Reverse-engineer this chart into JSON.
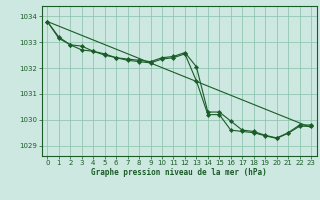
{
  "title": "Graphe pression niveau de la mer (hPa)",
  "background_color": "#cce8e0",
  "grid_color": "#88c0a8",
  "line_color": "#1a5c28",
  "ylim": [
    1028.6,
    1034.4
  ],
  "xlim": [
    -0.5,
    23.5
  ],
  "yticks": [
    1029,
    1030,
    1031,
    1032,
    1033,
    1034
  ],
  "xticks": [
    0,
    1,
    2,
    3,
    4,
    5,
    6,
    7,
    8,
    9,
    10,
    11,
    12,
    13,
    14,
    15,
    16,
    17,
    18,
    19,
    20,
    21,
    22,
    23
  ],
  "line_straight": {
    "x": [
      0,
      23
    ],
    "y": [
      1033.8,
      1029.7
    ]
  },
  "line_main": {
    "x": [
      0,
      1,
      2,
      3,
      4,
      5,
      6,
      7,
      8,
      9,
      10,
      11,
      12,
      13,
      14,
      15,
      16,
      17,
      18,
      19,
      20,
      21,
      22,
      23
    ],
    "y": [
      1033.8,
      1033.2,
      1032.9,
      1032.85,
      1032.65,
      1032.55,
      1032.4,
      1032.35,
      1032.3,
      1032.25,
      1032.4,
      1032.45,
      1032.6,
      1032.05,
      1030.3,
      1030.3,
      1029.95,
      1029.6,
      1029.55,
      1029.4,
      1029.3,
      1029.5,
      1029.8,
      1029.8
    ]
  },
  "line_mid": {
    "x": [
      0,
      1,
      2,
      3,
      4,
      5,
      6,
      7,
      8,
      9,
      10,
      11,
      12,
      13,
      14,
      15,
      16,
      17,
      18,
      19,
      20,
      21,
      22,
      23
    ],
    "y": [
      1033.8,
      1033.15,
      1032.9,
      1032.7,
      1032.65,
      1032.5,
      1032.4,
      1032.3,
      1032.25,
      1032.2,
      1032.35,
      1032.4,
      1032.55,
      1031.5,
      1030.2,
      1030.2,
      1029.6,
      1029.55,
      1029.5,
      1029.38,
      1029.28,
      1029.48,
      1029.75,
      1029.75
    ]
  }
}
